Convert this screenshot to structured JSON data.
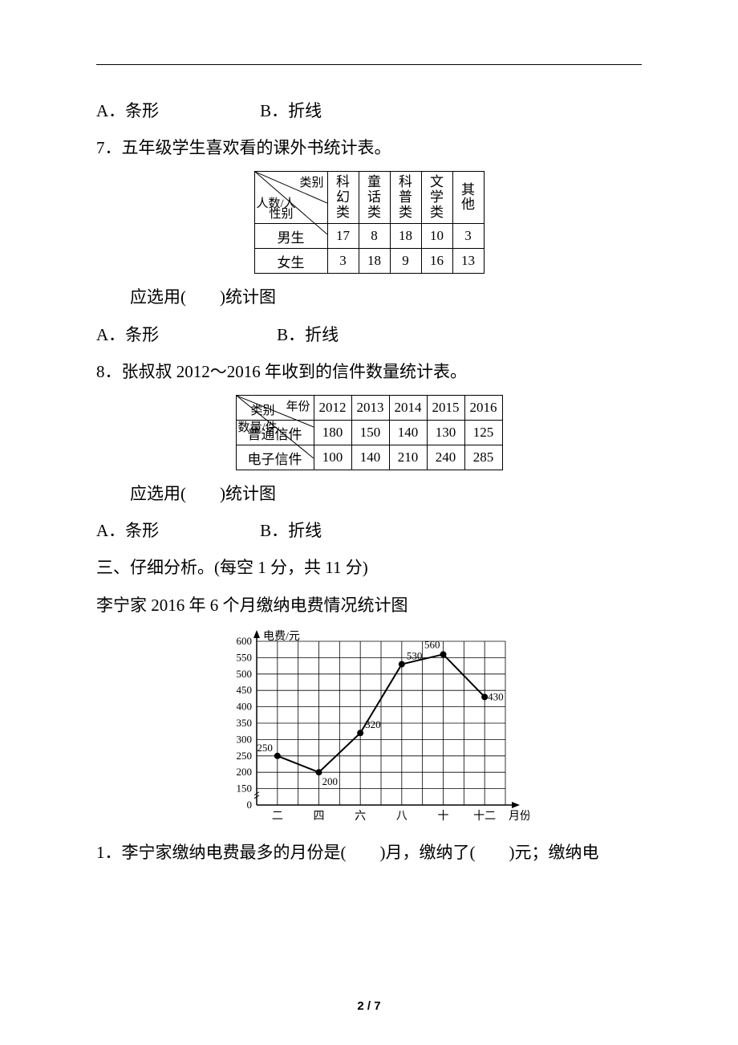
{
  "background_color": "#ffffff",
  "text_color": "#000000",
  "base_fontsize_pt": 16,
  "page_number": "2 / 7",
  "q6_options": {
    "a": "A．条形",
    "b": "B．折线"
  },
  "q7": {
    "title": "7．五年级学生喜欢看的课外书统计表。",
    "prompt": "应选用(　　)统计图",
    "options": {
      "a": "A．条形",
      "b": "B．折线"
    },
    "table": {
      "type": "table",
      "diag_top": "类别",
      "diag_left": "人数/人",
      "diag_bottom": "性别",
      "columns": [
        "科幻类",
        "童话类",
        "科普类",
        "文学类",
        "其他"
      ],
      "rows": [
        {
          "label": "男生",
          "values": [
            17,
            8,
            18,
            10,
            3
          ]
        },
        {
          "label": "女生",
          "values": [
            3,
            18,
            9,
            16,
            13
          ]
        }
      ],
      "col_write_mode": "vertical",
      "border_color": "#000000",
      "cell_font_size": 15
    }
  },
  "q8": {
    "title": "8．张叔叔 2012～2016 年收到的信件数量统计表。",
    "prompt": "应选用(　　)统计图",
    "options": {
      "a": "A．条形",
      "b": "B．折线"
    },
    "table": {
      "type": "table",
      "diag_top": "年份",
      "diag_left": "数量/件",
      "diag_bottom": "类别",
      "columns": [
        "2012",
        "2013",
        "2014",
        "2015",
        "2016"
      ],
      "rows": [
        {
          "label": "普通信件",
          "values": [
            180,
            150,
            140,
            130,
            125
          ]
        },
        {
          "label": "电子信件",
          "values": [
            100,
            140,
            210,
            240,
            285
          ]
        }
      ],
      "border_color": "#000000",
      "cell_font_size": 15
    }
  },
  "section3_heading": "三、仔细分析。(每空 1 分，共 11 分)",
  "chart_title_line": "李宁家 2016 年 6 个月缴纳电费情况统计图",
  "chart": {
    "type": "line",
    "y_label": "电费/元",
    "x_label": "月份",
    "x_categories": [
      "二",
      "四",
      "六",
      "八",
      "十",
      "十二"
    ],
    "values": [
      250,
      200,
      320,
      530,
      560,
      430
    ],
    "point_labels": [
      "250",
      "200",
      "320",
      "530",
      "560",
      "430"
    ],
    "y_ticks": [
      0,
      150,
      200,
      250,
      300,
      350,
      400,
      450,
      500,
      550,
      600
    ],
    "ylim": [
      0,
      600
    ],
    "line_color": "#000000",
    "marker_style": "circle",
    "marker_fill": "#000000",
    "marker_size": 4,
    "grid_color": "#000000",
    "grid_stroke": 1,
    "background_color": "#ffffff",
    "label_fontsize": 13,
    "axis_fontsize": 14,
    "grid_cols": 12,
    "grid_rows": 10,
    "tick_gap_after_zero": true
  },
  "q_after_chart": "1．李宁家缴纳电费最多的月份是(　　)月，缴纳了(　　)元；缴纳电"
}
